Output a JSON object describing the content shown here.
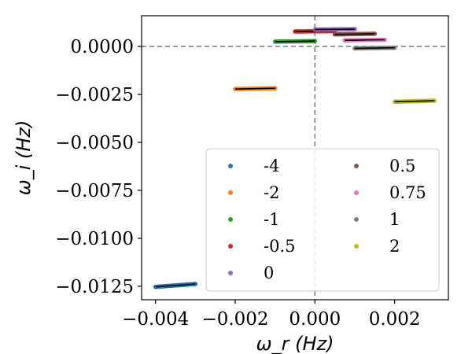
{
  "chart_data": {
    "type": "scatter",
    "xlabel": "ω_r (Hz)",
    "ylabel": "ω_i (Hz)",
    "xlim": [
      -0.00435,
      0.00335
    ],
    "ylim": [
      -0.0132,
      0.0016
    ],
    "x_ticks": [
      -0.004,
      -0.002,
      0.0,
      0.002
    ],
    "x_tick_labels": [
      "−0.004",
      "−0.002",
      "0.000",
      "0.002"
    ],
    "y_ticks": [
      0.0,
      -0.0025,
      -0.005,
      -0.0075,
      -0.01,
      -0.0125
    ],
    "y_tick_labels": [
      "0.0000",
      "−0.0025",
      "−0.0050",
      "−0.0075",
      "−0.0100",
      "−0.0125"
    ],
    "reference_lines": {
      "horizontal_y": 0.0,
      "vertical_x": 0.0,
      "style": "dashed",
      "color": "#808080"
    },
    "overlay_line_color": "#000000",
    "legend": {
      "location": "lower-right",
      "columns": 2
    },
    "series": [
      {
        "name": "-4",
        "color": "#1f77b4",
        "x_range": [
          -0.004,
          -0.003
        ],
        "y_range": [
          -0.01253,
          -0.01238
        ]
      },
      {
        "name": "-2",
        "color": "#ff7f0e",
        "x_range": [
          -0.002,
          -0.001
        ],
        "y_range": [
          -0.00222,
          -0.00218
        ]
      },
      {
        "name": "-1",
        "color": "#2ca02c",
        "x_range": [
          -0.001,
          0.0
        ],
        "y_range": [
          0.00025,
          0.00028
        ]
      },
      {
        "name": "-0.5",
        "color": "#d62728",
        "x_range": [
          -0.0005,
          0.0005
        ],
        "y_range": [
          0.00078,
          0.0008
        ]
      },
      {
        "name": "0",
        "color": "#9467bd",
        "x_range": [
          0.0,
          0.001
        ],
        "y_range": [
          0.00088,
          0.0009
        ]
      },
      {
        "name": "0.5",
        "color": "#8c564b",
        "x_range": [
          0.0005,
          0.0015
        ],
        "y_range": [
          0.00063,
          0.00066
        ]
      },
      {
        "name": "0.75",
        "color": "#e377c2",
        "x_range": [
          0.00075,
          0.00175
        ],
        "y_range": [
          0.00032,
          0.00035
        ]
      },
      {
        "name": "1",
        "color": "#7f7f7f",
        "x_range": [
          0.001,
          0.002
        ],
        "y_range": [
          -0.0001,
          -7e-05
        ]
      },
      {
        "name": "2",
        "color": "#bcbd22",
        "x_range": [
          0.002,
          0.003
        ],
        "y_range": [
          -0.00288,
          -0.00283
        ]
      }
    ]
  }
}
